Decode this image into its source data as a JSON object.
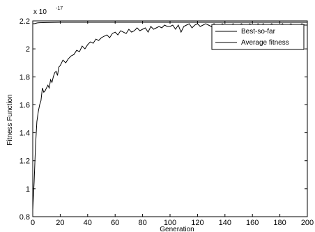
{
  "chart_data": {
    "type": "line",
    "xlabel": "Generation",
    "ylabel": "Fitness Function",
    "exponent_label": "x 10",
    "exponent_power": "-17",
    "xlim": [
      0,
      200
    ],
    "ylim": [
      0.8,
      2.2
    ],
    "xticks": [
      "0",
      "20",
      "40",
      "60",
      "80",
      "100",
      "120",
      "140",
      "160",
      "180",
      "200"
    ],
    "yticks": [
      "0.8",
      "1",
      "1.2",
      "1.4",
      "1.6",
      "1.8",
      "2",
      "2.2"
    ],
    "grid": false,
    "legend_position": "top-right",
    "series": [
      {
        "name": "Best-so-far",
        "color": "#000000",
        "x": [
          0,
          1,
          2,
          3,
          4,
          5,
          10,
          20,
          50,
          100,
          150,
          200
        ],
        "y": [
          2.18,
          2.18,
          2.182,
          2.185,
          2.186,
          2.187,
          2.188,
          2.19,
          2.19,
          2.19,
          2.19,
          2.19
        ]
      },
      {
        "name": "Average fitness",
        "color": "#000000",
        "x": [
          0,
          1,
          2,
          3,
          4,
          5,
          6,
          7,
          8,
          9,
          10,
          11,
          12,
          13,
          14,
          15,
          16,
          17,
          18,
          19,
          20,
          22,
          24,
          26,
          28,
          30,
          32,
          34,
          36,
          38,
          40,
          42,
          44,
          46,
          48,
          50,
          52,
          54,
          56,
          58,
          60,
          62,
          64,
          66,
          68,
          70,
          72,
          74,
          76,
          78,
          80,
          82,
          84,
          86,
          88,
          90,
          92,
          94,
          96,
          98,
          100,
          102,
          104,
          106,
          108,
          110,
          112,
          114,
          116,
          118,
          120,
          122,
          124,
          126,
          128,
          130,
          132,
          134,
          136,
          138,
          140,
          142,
          144,
          146,
          148,
          150,
          152,
          154,
          156,
          158,
          160,
          162,
          164,
          166,
          168,
          170,
          172,
          174,
          176,
          178,
          180,
          182,
          184,
          186,
          188,
          190,
          192,
          194,
          196,
          198,
          200
        ],
        "y": [
          0.85,
          1.05,
          1.3,
          1.48,
          1.55,
          1.6,
          1.63,
          1.72,
          1.69,
          1.7,
          1.72,
          1.74,
          1.72,
          1.78,
          1.76,
          1.8,
          1.83,
          1.84,
          1.81,
          1.87,
          1.88,
          1.92,
          1.9,
          1.93,
          1.95,
          1.96,
          1.99,
          1.98,
          2.02,
          2.0,
          2.03,
          2.05,
          2.04,
          2.07,
          2.06,
          2.08,
          2.09,
          2.1,
          2.08,
          2.11,
          2.12,
          2.1,
          2.13,
          2.12,
          2.11,
          2.14,
          2.12,
          2.13,
          2.15,
          2.13,
          2.14,
          2.15,
          2.12,
          2.16,
          2.14,
          2.15,
          2.16,
          2.15,
          2.17,
          2.16,
          2.16,
          2.17,
          2.14,
          2.17,
          2.12,
          2.16,
          2.17,
          2.18,
          2.15,
          2.17,
          2.18,
          2.16,
          2.17,
          2.18,
          2.17,
          2.16,
          2.18,
          2.17,
          2.16,
          2.18,
          2.17,
          2.15,
          2.17,
          2.18,
          2.16,
          2.17,
          2.18,
          2.17,
          2.16,
          2.18,
          2.17,
          2.16,
          2.18,
          2.17,
          2.18,
          2.16,
          2.17,
          2.18,
          2.17,
          2.16,
          2.17,
          2.18,
          2.16,
          2.17,
          2.18,
          2.17,
          2.15,
          2.17,
          2.18,
          2.17,
          2.17
        ]
      }
    ]
  }
}
